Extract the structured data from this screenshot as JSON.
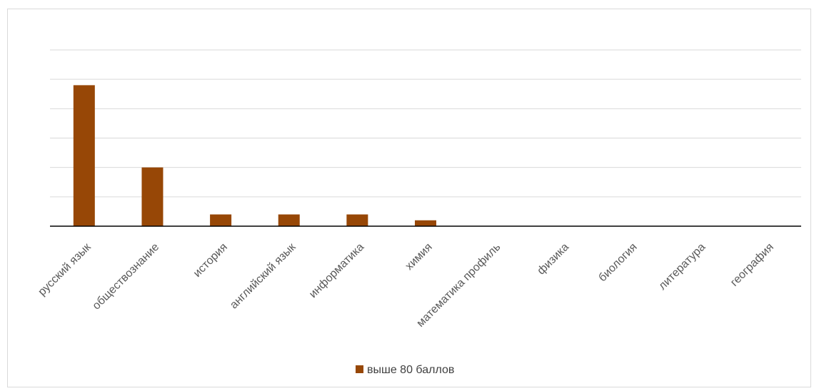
{
  "chart_data": {
    "type": "bar",
    "categories": [
      "русский язык",
      "обществознание",
      "история",
      "английский язык",
      "информатика",
      "химия",
      "математика профиль",
      "физика",
      "биология",
      "литература",
      "география"
    ],
    "series": [
      {
        "name": "выше 80 баллов",
        "color": "#974706",
        "values": [
          4.8,
          2.0,
          0.4,
          0.4,
          0.4,
          0.2,
          0,
          0,
          0,
          0,
          0
        ]
      }
    ],
    "ylim": [
      0,
      6
    ],
    "grid": true,
    "legend": "bottom",
    "xlabel": "",
    "ylabel": "",
    "title": ""
  }
}
